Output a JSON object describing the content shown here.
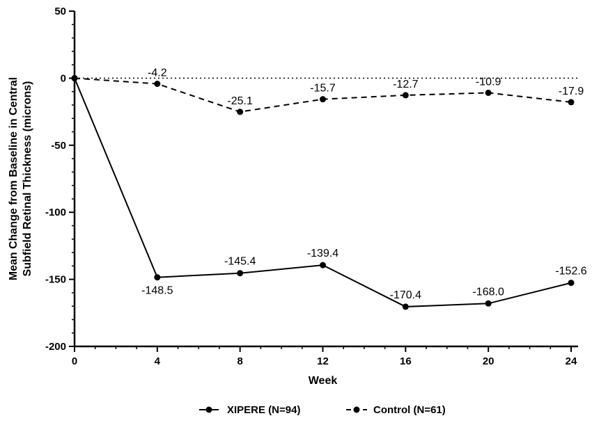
{
  "chart_data": {
    "type": "line",
    "title": "",
    "xlabel": "Week",
    "ylabel": [
      "Mean Change from Baseline in Central",
      "Subfield Retinal Thickness (microns)"
    ],
    "x": [
      0,
      4,
      8,
      12,
      16,
      20,
      24
    ],
    "xticks": [
      "0",
      "4",
      "8",
      "12",
      "16",
      "20",
      "24"
    ],
    "ylim": [
      -200,
      50
    ],
    "yticks": [
      "50",
      "0",
      "-50",
      "-100",
      "-150",
      "-200"
    ],
    "reference_line": 0,
    "grid": false,
    "legend_position": "bottom",
    "series": [
      {
        "name": "XIPERE (N=94)",
        "style": "solid",
        "color": "#000000",
        "values": [
          0,
          -148.5,
          -145.4,
          -139.4,
          -170.4,
          -168.0,
          -152.6
        ],
        "labels": [
          "",
          "-148.5",
          "-145.4",
          "-139.4",
          "-170.4",
          "-168.0",
          "-152.6"
        ]
      },
      {
        "name": "Control (N=61)",
        "style": "dashed",
        "color": "#000000",
        "values": [
          0,
          -4.2,
          -25.1,
          -15.7,
          -12.7,
          -10.9,
          -17.9
        ],
        "labels": [
          "",
          "-4.2",
          "-25.1",
          "-15.7",
          "-12.7",
          "-10.9",
          "-17.9"
        ]
      }
    ]
  }
}
